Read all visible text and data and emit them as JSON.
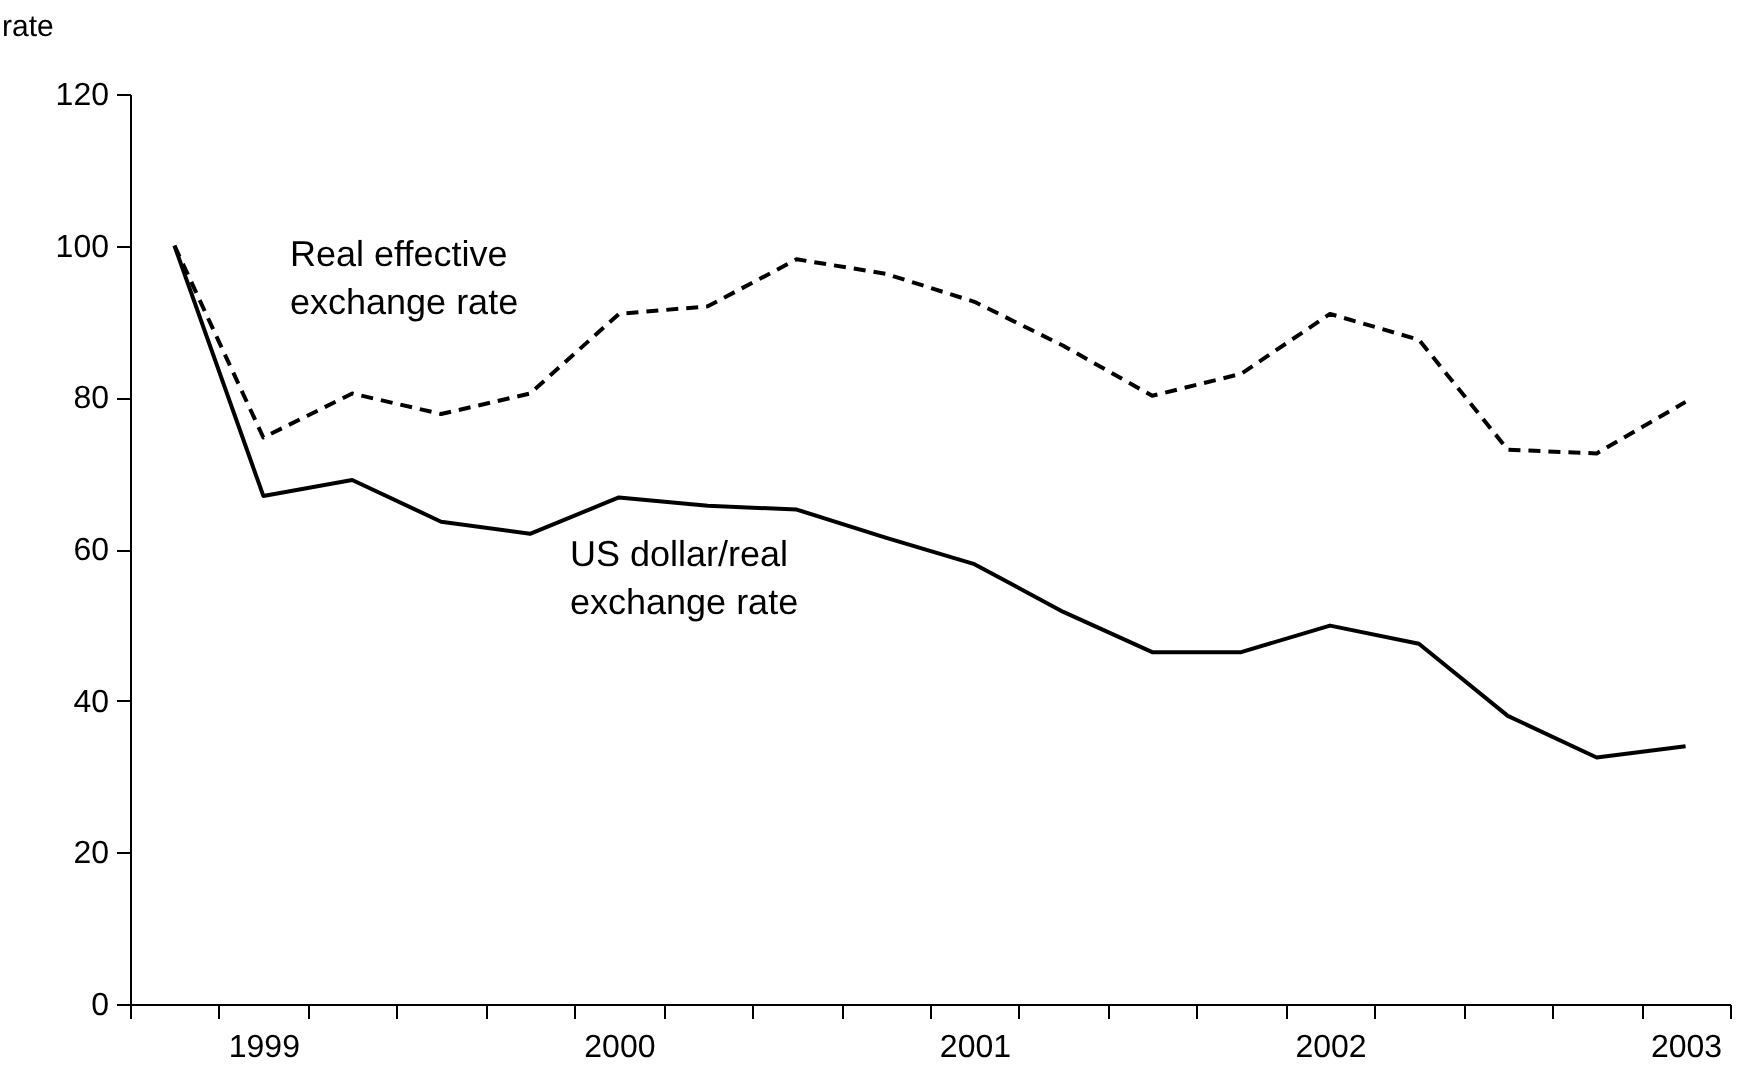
{
  "chart_data": {
    "type": "line",
    "ylabel": "rate",
    "categories": [
      null,
      "1999",
      null,
      null,
      null,
      "2000",
      null,
      null,
      null,
      "2001",
      null,
      null,
      null,
      "2002",
      null,
      null,
      null,
      "2003"
    ],
    "series": [
      {
        "color": "#000000",
        "line_style": "dashed",
        "values": [
          100,
          74.7,
          80.5,
          77.8,
          80.5,
          91,
          92,
          98.2,
          96.3,
          92.6,
          86.8,
          80.2,
          83.1,
          91,
          87.6,
          73.1,
          72.6,
          79.4
        ]
      },
      {
        "color": "#000000",
        "line_style": "solid",
        "values": [
          100,
          67,
          69.1,
          63.6,
          62,
          66.8,
          65.7,
          65.2,
          61.5,
          58,
          51.7,
          46.4,
          46.4,
          49.9,
          47.5,
          38,
          32.5,
          34
        ]
      }
    ],
    "annotations": [
      "Real effective\nexchange rate",
      "US dollar/real\nexchange rate"
    ],
    "ylim": [
      0,
      120
    ],
    "yticks": [
      0,
      20,
      40,
      60,
      80,
      100,
      120
    ],
    "grid": false,
    "marker": "none"
  }
}
